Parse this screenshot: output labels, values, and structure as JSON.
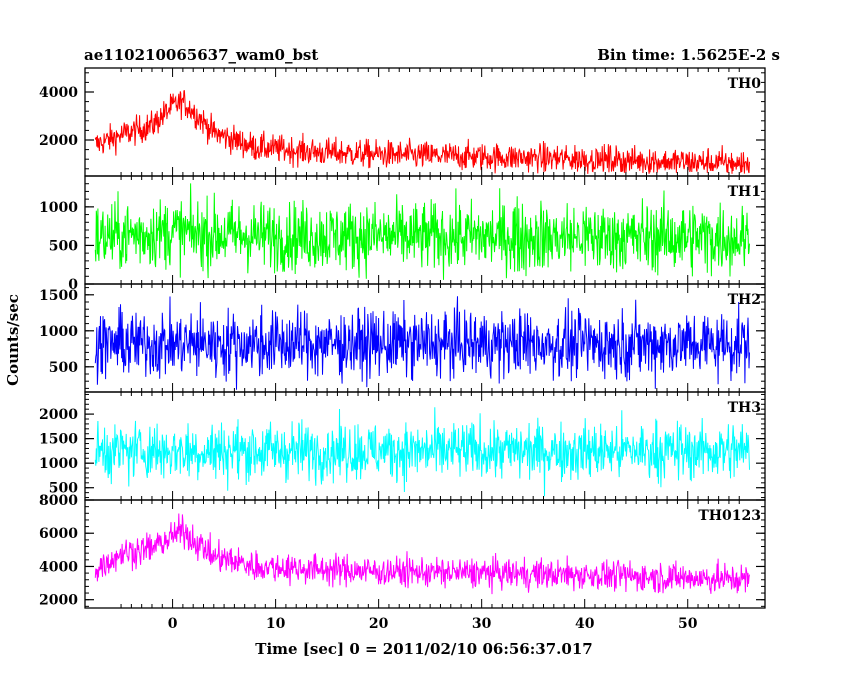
{
  "header": {
    "title": "ae110210065637_wam0_bst",
    "bin_time": "Bin time: 1.5625E-2 s"
  },
  "chart_data": {
    "type": "line",
    "xlabel": "Time [sec] 0 = 2011/02/10 06:56:37.017",
    "ylabel": "Counts/sec",
    "xlim": [
      -8.5,
      57.5
    ],
    "xticks": [
      0,
      10,
      20,
      30,
      40,
      50
    ],
    "x_start": -7.5,
    "x_end": 56.0,
    "x_step": 0.015625,
    "grid": false,
    "panels": [
      {
        "name": "TH0",
        "color": "#ff0000",
        "ylim": [
          500,
          5000
        ],
        "yticks": [
          2000,
          4000
        ],
        "profile": [
          [
            -7.5,
            1800
          ],
          [
            -5,
            2200
          ],
          [
            -2,
            2600
          ],
          [
            0,
            3400
          ],
          [
            1,
            3600
          ],
          [
            2,
            3200
          ],
          [
            4,
            2300
          ],
          [
            8,
            1700
          ],
          [
            14,
            1500
          ],
          [
            20,
            1400
          ],
          [
            40,
            1200
          ],
          [
            56,
            1000
          ]
        ],
        "noise": 420
      },
      {
        "name": "TH1",
        "color": "#00ff00",
        "ylim": [
          0,
          1400
        ],
        "yticks": [
          0,
          500,
          1000
        ],
        "profile": [
          [
            -7.5,
            600
          ],
          [
            0,
            680
          ],
          [
            2,
            650
          ],
          [
            10,
            620
          ],
          [
            56,
            600
          ]
        ],
        "noise": 320
      },
      {
        "name": "TH2",
        "color": "#0000ff",
        "ylim": [
          150,
          1650
        ],
        "yticks": [
          500,
          1000,
          1500
        ],
        "profile": [
          [
            -7.5,
            820
          ],
          [
            56,
            820
          ]
        ],
        "noise": 330
      },
      {
        "name": "TH3",
        "color": "#00ffff",
        "ylim": [
          250,
          2450
        ],
        "yticks": [
          500,
          1000,
          1500,
          2000
        ],
        "profile": [
          [
            -7.5,
            1250
          ],
          [
            56,
            1250
          ]
        ],
        "noise": 420
      },
      {
        "name": "TH0123",
        "color": "#ff00ff",
        "ylim": [
          1500,
          8000
        ],
        "yticks": [
          2000,
          4000,
          6000,
          8000
        ],
        "profile": [
          [
            -7.5,
            3800
          ],
          [
            -5,
            4800
          ],
          [
            -2,
            5100
          ],
          [
            0,
            5800
          ],
          [
            1,
            6200
          ],
          [
            2,
            5600
          ],
          [
            4,
            4600
          ],
          [
            8,
            4000
          ],
          [
            20,
            3700
          ],
          [
            40,
            3500
          ],
          [
            56,
            3200
          ]
        ],
        "noise": 650
      }
    ]
  }
}
